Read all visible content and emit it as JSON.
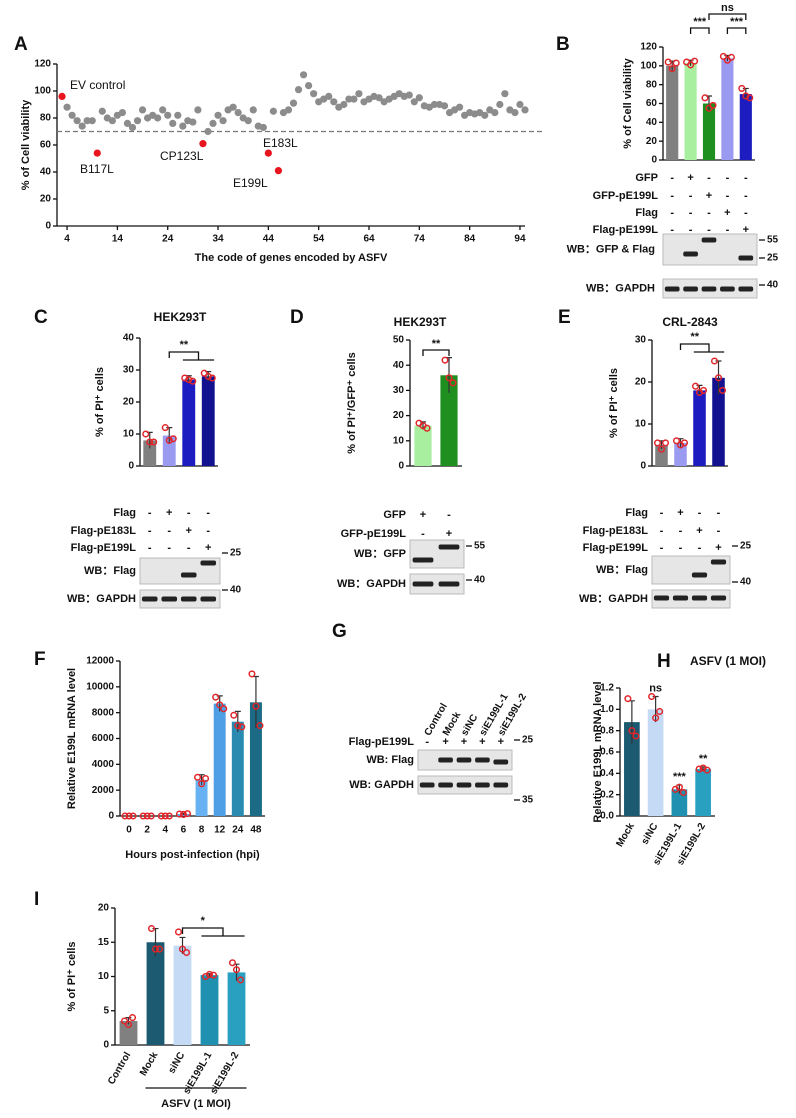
{
  "chart_data": [
    {
      "panel": "A",
      "type": "scatter",
      "y_label": "% of Cell viability",
      "x_label": "The code of genes encoded by ASFV",
      "xlim": [
        2,
        95
      ],
      "ylim": [
        0,
        120
      ],
      "xticks": [
        4,
        14,
        24,
        34,
        44,
        54,
        64,
        74,
        84,
        94
      ],
      "yticks": [
        0,
        20,
        40,
        60,
        80,
        100,
        120
      ],
      "threshold": 70,
      "series": [
        {
          "color": "#8c8c8c",
          "x": [
            4,
            5,
            6,
            7,
            8,
            9,
            11,
            12,
            13,
            14,
            15,
            16,
            17,
            18,
            19,
            20,
            21,
            22,
            23,
            24,
            25,
            26,
            27,
            28,
            29,
            30,
            32,
            33,
            34,
            35,
            36,
            37,
            38,
            39,
            40,
            41,
            42,
            43,
            45,
            47,
            48,
            49,
            50,
            51,
            52,
            53,
            54,
            55,
            56,
            57,
            58,
            59,
            60,
            61,
            62,
            63,
            64,
            65,
            66,
            67,
            68,
            69,
            70,
            71,
            72,
            73,
            74,
            75,
            76,
            77,
            78,
            79,
            80,
            81,
            82,
            83,
            84,
            85,
            86,
            87,
            88,
            89,
            90,
            91,
            92,
            93,
            94,
            95
          ],
          "values": [
            88,
            82,
            78,
            74,
            78,
            78,
            85,
            80,
            78,
            82,
            84,
            76,
            73,
            78,
            86,
            80,
            82,
            80,
            86,
            82,
            76,
            82,
            74,
            78,
            77,
            86,
            70,
            76,
            82,
            78,
            86,
            88,
            84,
            80,
            78,
            86,
            74,
            73,
            85,
            84,
            86,
            91,
            101,
            112,
            104,
            98,
            92,
            94,
            96,
            92,
            88,
            90,
            94,
            94,
            98,
            92,
            94,
            96,
            95,
            92,
            94,
            96,
            98,
            96,
            97,
            92,
            95,
            89,
            88,
            90,
            90,
            89,
            84,
            86,
            88,
            82,
            84,
            83,
            84,
            82,
            86,
            84,
            90,
            98,
            86,
            84,
            90,
            86
          ]
        },
        {
          "color": "#e8141e",
          "x": [
            3,
            10,
            31,
            44,
            46
          ],
          "values": [
            96,
            54,
            61,
            54,
            41
          ],
          "point_labels": [
            "EV control",
            "B117L",
            "CP123L",
            "E183L",
            "E199L"
          ]
        }
      ]
    },
    {
      "panel": "B",
      "type": "bar",
      "y_label": "% of Cell viability",
      "ylim": [
        0,
        120
      ],
      "yticks": [
        0,
        20,
        40,
        60,
        80,
        100,
        120
      ],
      "values": [
        100,
        103,
        60,
        108,
        70
      ],
      "errors": [
        5,
        3,
        8,
        3,
        6
      ],
      "points": [
        [
          104,
          97,
          103
        ],
        [
          104,
          101,
          105
        ],
        [
          66,
          55,
          58
        ],
        [
          110,
          106,
          109
        ],
        [
          76,
          68,
          66
        ]
      ],
      "colors": [
        "#808080",
        "#a8f0a0",
        "#1f8f1f",
        "#9a9af0",
        "#1c1cc0"
      ],
      "significance": [
        "***",
        "***",
        "ns"
      ],
      "treatments": [
        {
          "label": "GFP",
          "signs": [
            "-",
            "+",
            "-",
            "-",
            "-"
          ]
        },
        {
          "label": "GFP-pE199L",
          "signs": [
            "-",
            "-",
            "+",
            "-",
            "-"
          ]
        },
        {
          "label": "Flag",
          "signs": [
            "-",
            "-",
            "-",
            "+",
            "-"
          ]
        },
        {
          "label": "Flag-pE199L",
          "signs": [
            "-",
            "-",
            "-",
            "-",
            "+"
          ]
        }
      ],
      "blots": [
        {
          "label": "WB：GFP & Flag",
          "markers": [
            55,
            25
          ]
        },
        {
          "label": "WB：GAPDH",
          "markers": [
            40
          ]
        }
      ]
    },
    {
      "panel": "C",
      "type": "bar",
      "title": "HEK293T",
      "y_label": "% of PI⁺ cells",
      "ylim": [
        0,
        40
      ],
      "yticks": [
        0,
        10,
        20,
        30,
        40
      ],
      "values": [
        8,
        9.5,
        27,
        28
      ],
      "errors": [
        2.5,
        2.5,
        1.2,
        1.5
      ],
      "points": [
        [
          10,
          7.5,
          7.5
        ],
        [
          12,
          8,
          8.5
        ],
        [
          27.5,
          27,
          26.5
        ],
        [
          29,
          28,
          27.5
        ]
      ],
      "colors": [
        "#808080",
        "#9a9af0",
        "#1c1cc0",
        "#121290"
      ],
      "significance": [
        "**"
      ],
      "treatments": [
        {
          "label": "Flag",
          "signs": [
            "-",
            "+",
            "-",
            "-"
          ]
        },
        {
          "label": "Flag-pE183L",
          "signs": [
            "-",
            "-",
            "+",
            "-"
          ]
        },
        {
          "label": "Flag-pE199L",
          "signs": [
            "-",
            "-",
            "-",
            "+"
          ]
        }
      ],
      "blots": [
        {
          "label": "WB：Flag",
          "markers": [
            25
          ]
        },
        {
          "label": "WB：GAPDH",
          "markers": [
            40
          ]
        }
      ]
    },
    {
      "panel": "D",
      "type": "bar",
      "title": "HEK293T",
      "y_label": "% of PI⁺/GFP⁺ cells",
      "ylim": [
        0,
        50
      ],
      "yticks": [
        0,
        10,
        20,
        30,
        40,
        50
      ],
      "values": [
        16,
        36
      ],
      "errors": [
        1.5,
        7
      ],
      "points": [
        [
          17,
          16,
          15
        ],
        [
          42,
          35,
          33
        ]
      ],
      "colors": [
        "#a8f0a0",
        "#1f8f1f"
      ],
      "significance": [
        "**"
      ],
      "treatments": [
        {
          "label": "GFP",
          "signs": [
            "+",
            "-"
          ]
        },
        {
          "label": "GFP-pE199L",
          "signs": [
            "-",
            "+"
          ]
        }
      ],
      "blots": [
        {
          "label": "WB：GFP",
          "markers": [
            55
          ]
        },
        {
          "label": "WB：GAPDH",
          "markers": [
            40
          ]
        }
      ]
    },
    {
      "panel": "E",
      "type": "bar",
      "title": "CRL-2843",
      "y_label": "% of PI⁺ cells",
      "ylim": [
        0,
        30
      ],
      "yticks": [
        0,
        10,
        20,
        30
      ],
      "values": [
        5,
        5.5,
        18,
        21
      ],
      "errors": [
        1,
        1,
        1.2,
        4
      ],
      "points": [
        [
          5.5,
          4,
          5.5
        ],
        [
          6,
          5,
          5.5
        ],
        [
          19,
          17.5,
          18
        ],
        [
          25,
          21,
          18
        ]
      ],
      "colors": [
        "#808080",
        "#9a9af0",
        "#1c1cc0",
        "#121290"
      ],
      "significance": [
        "**"
      ],
      "treatments": [
        {
          "label": "Flag",
          "signs": [
            "-",
            "+",
            "-",
            "-"
          ]
        },
        {
          "label": "Flag-pE183L",
          "signs": [
            "-",
            "-",
            "+",
            "-"
          ]
        },
        {
          "label": "Flag-pE199L",
          "signs": [
            "-",
            "-",
            "-",
            "+"
          ]
        }
      ],
      "blots": [
        {
          "label": "WB：Flag",
          "markers": [
            25
          ]
        },
        {
          "label": "WB：GAPDH",
          "markers": [
            40
          ]
        }
      ]
    },
    {
      "panel": "F",
      "type": "bar",
      "y_label": "Relative E199L mRNA level",
      "x_label": "Hours post-infection (hpi)",
      "ylim": [
        0,
        12000
      ],
      "yticks": [
        0,
        2000,
        4000,
        6000,
        8000,
        10000,
        12000
      ],
      "categories": [
        0,
        2,
        4,
        6,
        8,
        12,
        24,
        48
      ],
      "values": [
        0,
        0,
        0,
        150,
        2800,
        8700,
        7300,
        8800
      ],
      "errors": [
        0,
        0,
        0,
        60,
        400,
        600,
        800,
        2000
      ],
      "points": [
        [
          0,
          0,
          0
        ],
        [
          0,
          0,
          0
        ],
        [
          0,
          0,
          0
        ],
        [
          150,
          120,
          180
        ],
        [
          3000,
          2500,
          2900
        ],
        [
          9200,
          8600,
          8300
        ],
        [
          7800,
          7000,
          6900
        ],
        [
          11000,
          8500,
          7000
        ]
      ],
      "colors": [
        "#5aaaf0",
        "#5aaaf0",
        "#5aaaf0",
        "#5aaaf0",
        "#66b2f2",
        "#4f9fe6",
        "#2a8ab0",
        "#1b6a86"
      ]
    },
    {
      "panel": "G",
      "type": "blot",
      "columns": [
        "Control",
        "Mock",
        "siNC",
        "siE199L-1",
        "siE199L-2"
      ],
      "treatments": [
        {
          "label": "Flag-pE199L",
          "signs": [
            "-",
            "+",
            "+",
            "+",
            "+"
          ]
        }
      ],
      "blots": [
        {
          "label": "WB: Flag",
          "markers": [
            25
          ]
        },
        {
          "label": "WB: GAPDH",
          "markers": [
            35
          ]
        }
      ]
    },
    {
      "panel": "H",
      "type": "bar",
      "title": "ASFV (1 MOI)",
      "y_label": "Relative E199L mRNA level",
      "ylim": [
        0,
        1.2
      ],
      "yticks": [
        {
          "value": 0,
          "label": "0.0"
        },
        0.2,
        0.4,
        0.6,
        0.8,
        {
          "value": 1,
          "label": "1.0"
        },
        1.2
      ],
      "categories": [
        "Mock",
        "siNC",
        "siE199L-1",
        "siE199L-2"
      ],
      "values": [
        0.88,
        1.0,
        0.25,
        0.44
      ],
      "errors": [
        0.2,
        0.12,
        0.04,
        0.02
      ],
      "points": [
        [
          1.1,
          0.8,
          0.75
        ],
        [
          1.12,
          0.92,
          0.98
        ],
        [
          0.25,
          0.27,
          0.22
        ],
        [
          0.44,
          0.45,
          0.43
        ]
      ],
      "colors": [
        "#1b5a70",
        "#c5daf5",
        "#1f90b0",
        "#2aa0c0"
      ],
      "significance": [
        null,
        "ns",
        "***",
        "**"
      ]
    },
    {
      "panel": "I",
      "type": "bar",
      "y_label": "% of PI⁺ cells",
      "ylim": [
        0,
        20
      ],
      "yticks": [
        0,
        5,
        10,
        15,
        20
      ],
      "categories": [
        "Control",
        "Mock",
        "siNC",
        "siE199L-1",
        "siE199L-2"
      ],
      "values": [
        3.5,
        15,
        14.5,
        10.2,
        10.6
      ],
      "errors": [
        0.5,
        2,
        1.2,
        0.2,
        1.2
      ],
      "points": [
        [
          3.5,
          3,
          4
        ],
        [
          17,
          14,
          14
        ],
        [
          16.5,
          14,
          13.5
        ],
        [
          10,
          10.3,
          10.2
        ],
        [
          12,
          11,
          9.5
        ]
      ],
      "colors": [
        "#808080",
        "#1b5a70",
        "#c5daf5",
        "#1f90b0",
        "#2aa0c0"
      ],
      "significance": [
        "*"
      ],
      "group_label": "ASFV (1 MOI)"
    }
  ]
}
